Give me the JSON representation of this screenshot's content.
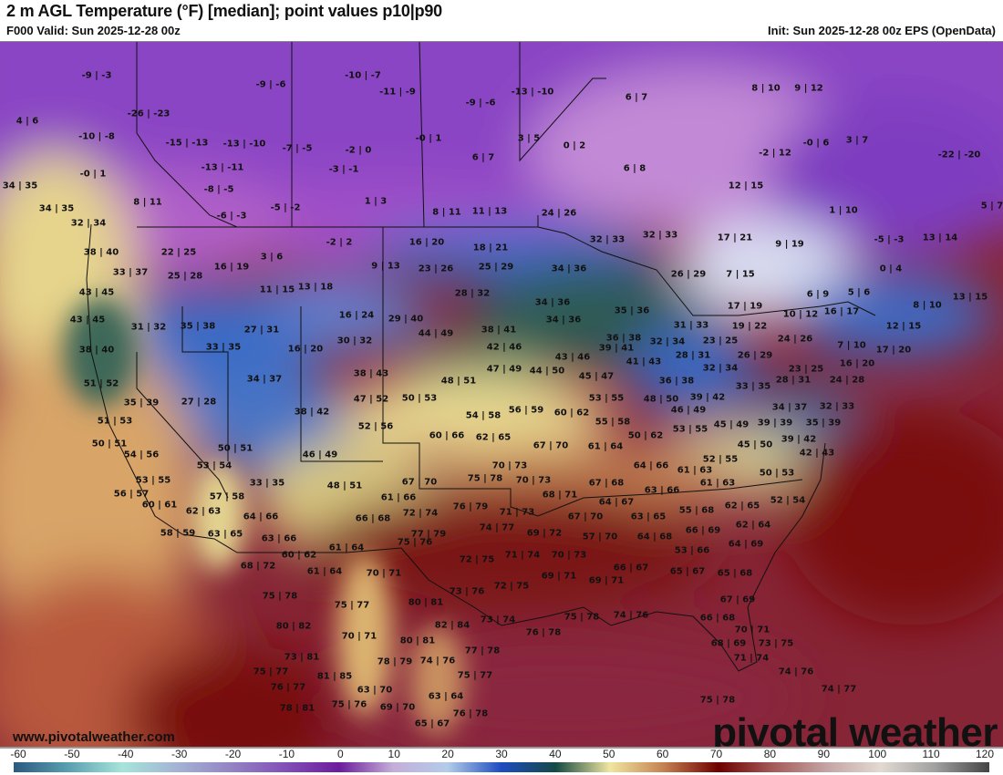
{
  "header": {
    "title": "2 m AGL Temperature (°F) [median]; point values p10|p90",
    "valid": "F000 Valid: Sun 2025-12-28 00z",
    "init": "Init: Sun 2025-12-28 00z EPS (OpenData)"
  },
  "footer": {
    "website": "www.pivotalweather.com",
    "watermark": "pivotal weather"
  },
  "colorbar": {
    "unit": "°F",
    "ticks": [
      "-60",
      "-50",
      "-40",
      "-30",
      "-20",
      "-10",
      "0",
      "10",
      "20",
      "30",
      "40",
      "50",
      "60",
      "70",
      "80",
      "90",
      "100",
      "110",
      "120"
    ],
    "colors": [
      "#2c5a80",
      "#5a9fb0",
      "#a6e4da",
      "#a4b4d4",
      "#9484c4",
      "#8250b8",
      "#6c1c9c",
      "#c4aed8",
      "#b4cce8",
      "#1e4cc0",
      "#164a44",
      "#f0e6a0",
      "#c48050",
      "#6e0000",
      "#a45a58",
      "#c4a4a4",
      "#e2dad2",
      "#a0a0a0",
      "#444444"
    ]
  },
  "points": [
    "-9 | -3",
    "-10 | -7",
    "-9 | -6",
    "-11 | -9",
    "-9 | -6",
    "-13 | -10",
    "6 | 7",
    "8 | 10",
    "9 | 12",
    "-26 | -23",
    "4 | 6",
    "-10 | -8",
    "-15 | -13",
    "-13 | -10",
    "-7 | -5",
    "-2 | 0",
    "-0 | 1",
    "3 | 5",
    "0 | 2",
    "-0 | 6",
    "3 | 7",
    "-2 | 12",
    "-22 | -20",
    "6 | 7",
    "-13 | -11",
    "-3 | -1",
    "-0 | 1",
    "6 | 8",
    "34 | 35",
    "-8 | -5",
    "12 | 15",
    "1 | 3",
    "8 | 11",
    "-5 | -2",
    "-6 | -3",
    "8 | 11",
    "11 | 13",
    "24 | 26",
    "1 | 10",
    "5 | 7",
    "34 | 35",
    "32 | 34",
    "17 | 21",
    "9 | 19",
    "32 | 33",
    "32 | 33",
    "-5 | -3",
    "13 | 14",
    "16 | 20",
    "18 | 21",
    "-2 | 2",
    "22 | 25",
    "38 | 40",
    "3 | 6",
    "9 | 13",
    "23 | 26",
    "25 | 29",
    "34 | 36",
    "26 | 29",
    "7 | 15",
    "0 | 4",
    "33 | 37",
    "25 | 28",
    "16 | 19",
    "11 | 15",
    "13 | 18",
    "28 | 32",
    "34 | 36",
    "6 | 9",
    "5 | 6",
    "13 | 15",
    "43 | 45",
    "8 | 10",
    "35 | 36",
    "34 | 36",
    "17 | 19",
    "16 | 17",
    "12 | 15",
    "43 | 45",
    "16 | 24",
    "29 | 40",
    "38 | 41",
    "19 | 22",
    "10 | 12",
    "24 | 26",
    "31 | 33",
    "36 | 38",
    "32 | 34",
    "31 | 32",
    "35 | 38",
    "27 | 31",
    "44 | 49",
    "30 | 32",
    "16 | 20",
    "42 | 46",
    "33 | 35",
    "38 | 40",
    "7 | 10",
    "17 | 20",
    "23 | 25",
    "28 | 31",
    "26 | 29",
    "39 | 41",
    "41 | 43",
    "43 | 46",
    "44 | 50",
    "47 | 49",
    "32 | 34",
    "16 | 20",
    "23 | 25",
    "24 | 28",
    "28 | 31",
    "33 | 35",
    "45 | 47",
    "36 | 38",
    "48 | 51",
    "38 | 43",
    "34 | 37",
    "51 | 52",
    "35 | 39",
    "27 | 28",
    "39 | 42",
    "48 | 50",
    "53 | 55",
    "34 | 37",
    "32 | 33",
    "47 | 52",
    "50 | 53",
    "38 | 42",
    "46 | 49",
    "45 | 49",
    "39 | 39",
    "35 | 39",
    "56 | 59",
    "60 | 62",
    "55 | 58",
    "54 | 58",
    "51 | 53",
    "52 | 56",
    "53 | 55",
    "50 | 62",
    "60 | 66",
    "62 | 65",
    "67 | 70",
    "61 | 64",
    "50 | 51",
    "39 | 42",
    "45 | 50",
    "42 | 43",
    "54 | 56",
    "50 | 51",
    "46 | 49",
    "52 | 55",
    "53 | 54",
    "70 | 73",
    "64 | 66",
    "61 | 63",
    "67 | 70",
    "75 | 78",
    "70 | 73",
    "50 | 53",
    "53 | 55",
    "33 | 35",
    "48 | 51",
    "67 | 68",
    "61 | 63",
    "68 | 71",
    "56 | 57",
    "57 | 58",
    "64 | 67",
    "63 | 66",
    "52 | 54",
    "60 | 61",
    "62 | 63",
    "61 | 66",
    "76 | 79",
    "71 | 73",
    "55 | 68",
    "62 | 65",
    "63 | 65",
    "64 | 66",
    "66 | 68",
    "72 | 74",
    "67 | 70",
    "62 | 64",
    "74 | 77",
    "69 | 72",
    "77 | 79",
    "66 | 69",
    "64 | 68",
    "57 | 70",
    "58 | 59",
    "63 | 65",
    "63 | 66",
    "64 | 69",
    "75 | 76",
    "71 | 74",
    "70 | 73",
    "61 | 64",
    "60 | 62",
    "53 | 66",
    "72 | 75",
    "68 | 72",
    "61 | 64",
    "70 | 71",
    "66 | 67",
    "65 | 67",
    "65 | 68",
    "72 | 75",
    "69 | 71",
    "69 | 71",
    "73 | 76",
    "75 | 78",
    "67 | 69",
    "75 | 77",
    "80 | 81",
    "74 | 76",
    "75 | 78",
    "73 | 74",
    "82 | 84",
    "76 | 78",
    "80 | 82",
    "66 | 68",
    "70 | 71",
    "70 | 71",
    "80 | 81",
    "73 | 75",
    "68 | 69",
    "73 | 81",
    "78 | 79",
    "74 | 76",
    "77 | 78",
    "71 | 74",
    "74 | 76",
    "75 | 77",
    "81 | 85",
    "75 | 77",
    "76 | 77",
    "63 | 70",
    "74 | 77",
    "63 | 64",
    "75 | 76",
    "69 | 70",
    "76 | 78",
    "75 | 78",
    "78 | 81",
    "65 | 67"
  ]
}
